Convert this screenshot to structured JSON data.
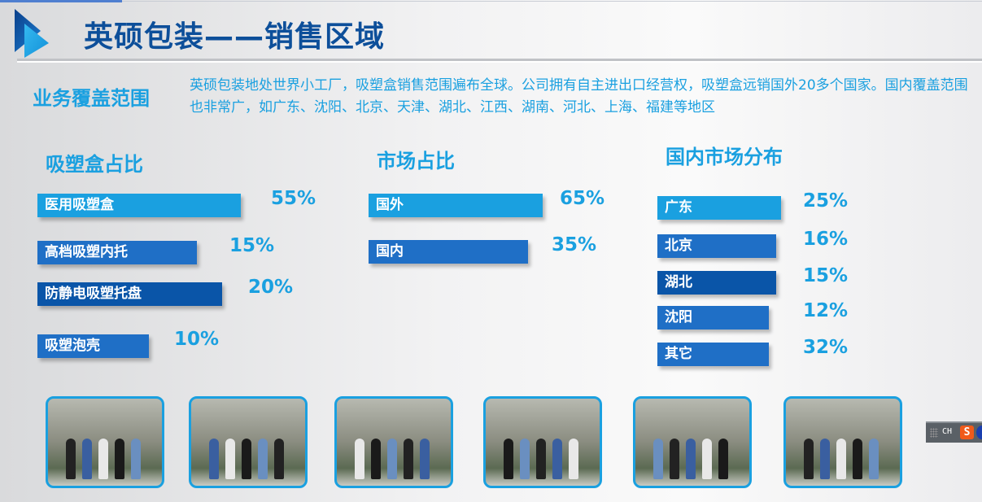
{
  "header": {
    "title": "英硕包装——销售区域"
  },
  "coverage": {
    "label": "业务覆盖范围",
    "text": "英硕包装地处世界小工厂，吸塑盒销售范围遍布全球。公司拥有自主进出口经营权，吸塑盒远销国外20多个国家。国内覆盖范围也非常广，如广东、沈阳、北京、天津、湖北、江西、湖南、河北、上海、福建等地区"
  },
  "colors": {
    "light": "#1aa0e0",
    "mid": "#1f6fc6",
    "dark": "#0a55a8",
    "title": "#0d4f9a"
  },
  "chart_data": [
    {
      "type": "bar",
      "title": "吸塑盒占比",
      "categories": [
        "医用吸塑盒",
        "高档吸塑内托",
        "防静电吸塑托盘",
        "吸塑泡壳"
      ],
      "values": [
        55,
        15,
        20,
        10
      ],
      "labels": [
        "55%",
        "15%",
        "20%",
        "10%"
      ]
    },
    {
      "type": "bar",
      "title": "市场占比",
      "categories": [
        "国外",
        "国内"
      ],
      "values": [
        65,
        35
      ],
      "labels": [
        "65%",
        "35%"
      ]
    },
    {
      "type": "bar",
      "title": "国内市场分布",
      "categories": [
        "广东",
        "北京",
        "湖北",
        "沈阳",
        "其它"
      ],
      "values": [
        25,
        16,
        15,
        12,
        32
      ],
      "labels": [
        "25%",
        "16%",
        "15%",
        "12%",
        "32%"
      ]
    }
  ],
  "photos": 6,
  "ime": {
    "label": "CH",
    "icon": "sogou-icon"
  }
}
